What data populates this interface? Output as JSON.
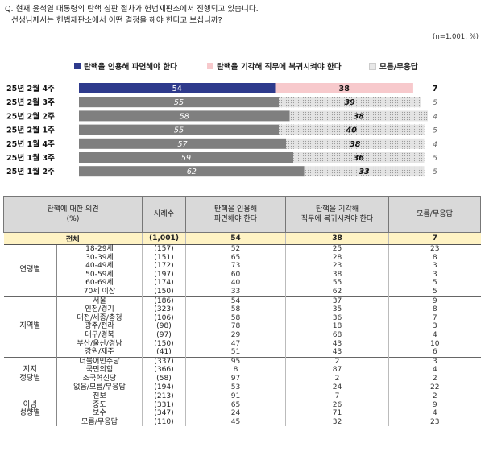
{
  "question": {
    "line1": "Q. 현재 윤석열 대통령의 탄핵 심판 절차가 헌법재판소에서 진행되고 있습니다.",
    "line2": "선생님께서는 헌법재판소에서 어떤 결정을 해야 한다고 보십니까?",
    "unit": "(n=1,001, %)"
  },
  "colors": {
    "uphold_latest": "#2e3a8c",
    "uphold": "#7f7f7f",
    "reject_latest": "#f7c9cc",
    "reject": "#d9d9d9",
    "unknown": "#f0f0f0"
  },
  "chart_data": {
    "type": "bar",
    "orientation": "horizontal",
    "stacked": true,
    "categories": [
      "25년 2월 4주",
      "25년 2월 3주",
      "25년 2월 2주",
      "25년 2월 1주",
      "25년 1월 4주",
      "25년 1월 3주",
      "25년 1월 2주"
    ],
    "series": [
      {
        "name": "탄핵을 인용해 파면해야 한다",
        "values": [
          54,
          55,
          58,
          55,
          57,
          59,
          62
        ]
      },
      {
        "name": "탄핵을 기각해 직무에 복귀시켜야 한다",
        "values": [
          38,
          39,
          38,
          40,
          38,
          36,
          33
        ]
      },
      {
        "name": "모름/무응답",
        "values": [
          7,
          5,
          4,
          5,
          4,
          5,
          5
        ]
      }
    ],
    "legend_position": "top"
  },
  "table": {
    "headers": [
      "탄핵에 대한 의견\n(%)",
      "사례수",
      "탄핵을 인용해\n파면해야 한다",
      "탄핵을 기각해\n직무에 복귀시켜야 한다",
      "모름/무응답"
    ],
    "total": {
      "label": "전체",
      "n": "(1,001)",
      "values": [
        "54",
        "38",
        "7"
      ]
    },
    "groups": [
      {
        "name": "연령별",
        "rows": [
          {
            "label": "18-29세",
            "n": "(157)",
            "values": [
              "52",
              "25",
              "23"
            ]
          },
          {
            "label": "30-39세",
            "n": "(151)",
            "values": [
              "65",
              "28",
              "8"
            ]
          },
          {
            "label": "40-49세",
            "n": "(172)",
            "values": [
              "73",
              "23",
              "3"
            ]
          },
          {
            "label": "50-59세",
            "n": "(197)",
            "values": [
              "60",
              "38",
              "3"
            ]
          },
          {
            "label": "60-69세",
            "n": "(174)",
            "values": [
              "40",
              "55",
              "5"
            ]
          },
          {
            "label": "70세 이상",
            "n": "(150)",
            "values": [
              "33",
              "62",
              "5"
            ]
          }
        ]
      },
      {
        "name": "지역별",
        "rows": [
          {
            "label": "서울",
            "n": "(186)",
            "values": [
              "54",
              "37",
              "9"
            ]
          },
          {
            "label": "인천/경기",
            "n": "(323)",
            "values": [
              "58",
              "35",
              "8"
            ]
          },
          {
            "label": "대전/세종/충청",
            "n": "(106)",
            "values": [
              "58",
              "36",
              "7"
            ]
          },
          {
            "label": "광주/전라",
            "n": "(98)",
            "values": [
              "78",
              "18",
              "3"
            ]
          },
          {
            "label": "대구/경북",
            "n": "(97)",
            "values": [
              "29",
              "68",
              "4"
            ]
          },
          {
            "label": "부산/울산/경남",
            "n": "(150)",
            "values": [
              "47",
              "43",
              "10"
            ]
          },
          {
            "label": "강원/제주",
            "n": "(41)",
            "values": [
              "51",
              "43",
              "6"
            ]
          }
        ]
      },
      {
        "name": "지지\n정당별",
        "rows": [
          {
            "label": "더불어민주당",
            "n": "(337)",
            "values": [
              "95",
              "2",
              "3"
            ]
          },
          {
            "label": "국민의힘",
            "n": "(366)",
            "values": [
              "8",
              "87",
              "4"
            ]
          },
          {
            "label": "조국혁신당",
            "n": "(58)",
            "values": [
              "97",
              "2",
              "2"
            ]
          },
          {
            "label": "없음/모름/무응답",
            "n": "(194)",
            "values": [
              "53",
              "24",
              "22"
            ]
          }
        ]
      },
      {
        "name": "이념\n성향별",
        "rows": [
          {
            "label": "진보",
            "n": "(213)",
            "values": [
              "91",
              "7",
              "2"
            ]
          },
          {
            "label": "중도",
            "n": "(331)",
            "values": [
              "65",
              "26",
              "9"
            ]
          },
          {
            "label": "보수",
            "n": "(347)",
            "values": [
              "24",
              "71",
              "4"
            ]
          },
          {
            "label": "모름/무응답",
            "n": "(110)",
            "values": [
              "45",
              "32",
              "23"
            ]
          }
        ]
      }
    ]
  }
}
